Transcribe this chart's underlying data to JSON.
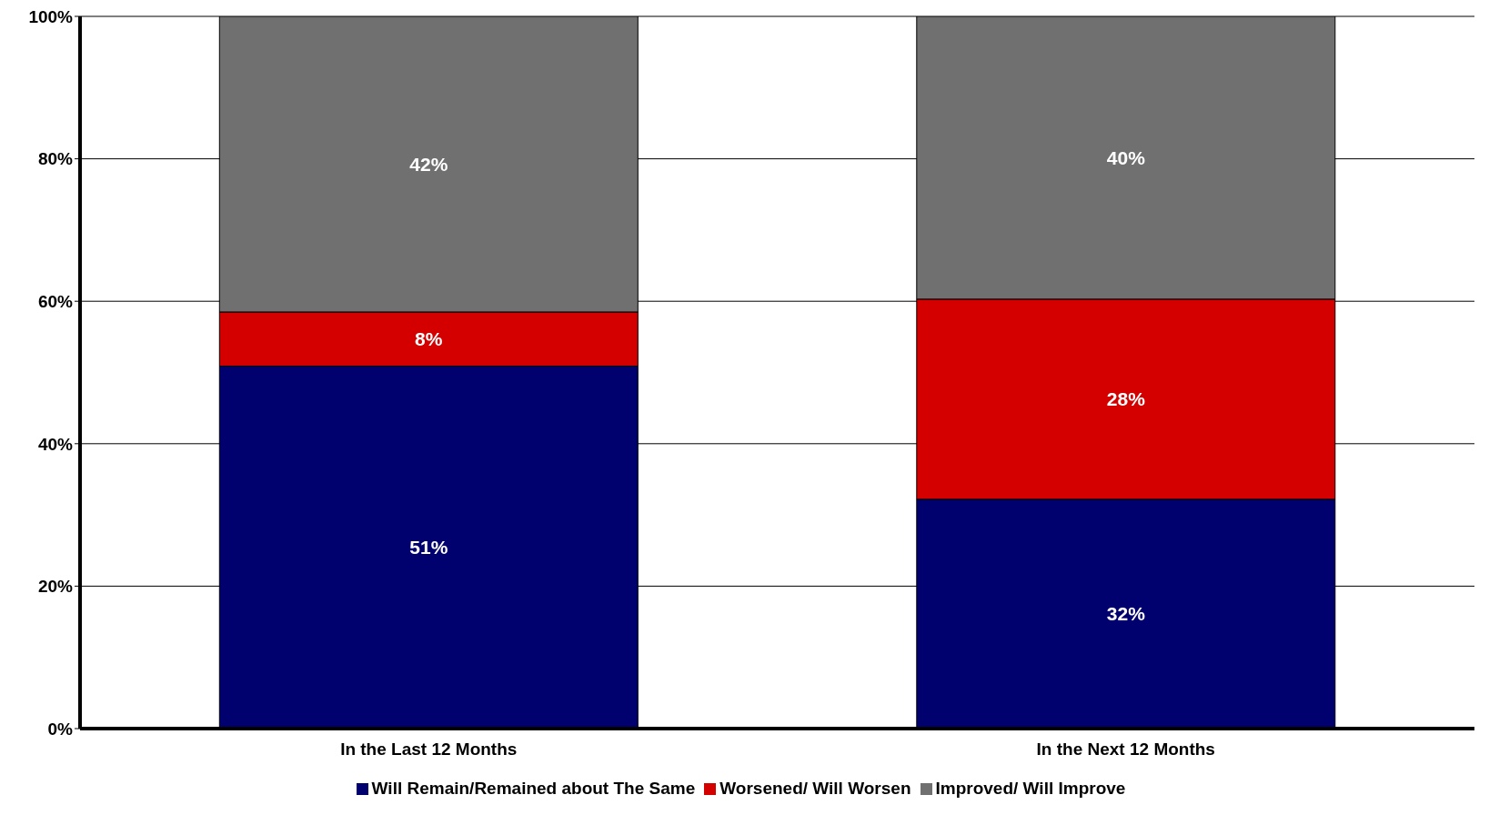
{
  "chart_data": {
    "type": "bar",
    "stacked": true,
    "categories": [
      "In the Last 12 Months",
      "In the Next 12 Months"
    ],
    "series": [
      {
        "name": "Will Remain/Remained about The Same",
        "color": "#00006e",
        "values": [
          50.9,
          32.2
        ],
        "value_labels": [
          "51%",
          "32%"
        ]
      },
      {
        "name": "Worsened/ Will Worsen",
        "color": "#d40000",
        "values": [
          7.6,
          28.1
        ],
        "value_labels": [
          "8%",
          "28%"
        ]
      },
      {
        "name": "Improved/ Will Improve",
        "color": "#707070",
        "values": [
          41.5,
          39.7
        ],
        "value_labels": [
          "42%",
          "40%"
        ]
      }
    ],
    "ylim": [
      0,
      100
    ],
    "yticks": [
      {
        "value": 0,
        "label": "0%"
      },
      {
        "value": 20,
        "label": "20%"
      },
      {
        "value": 40,
        "label": "40%"
      },
      {
        "value": 60,
        "label": "60%"
      },
      {
        "value": 80,
        "label": "80%"
      },
      {
        "value": 100,
        "label": "100%"
      }
    ],
    "grid": "y",
    "legend": "bottom"
  }
}
